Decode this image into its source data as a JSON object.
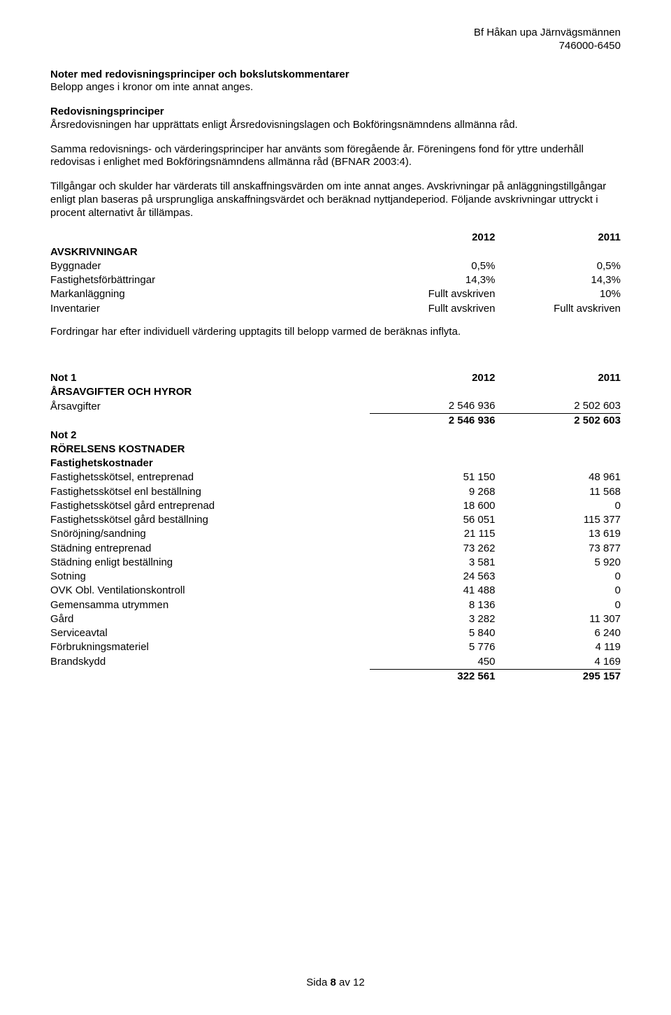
{
  "header": {
    "company": "Bf Håkan upa Järnvägsmännen",
    "orgnr": "746000-6450"
  },
  "intro": {
    "title": "Noter med redovisningsprinciper och bokslutskommentarer",
    "subtitle": "Belopp anges i kronor om inte annat anges.",
    "principles_heading": "Redovisningsprinciper",
    "p1": "Årsredovisningen har upprättats enligt Årsredovisningslagen och Bokföringsnämndens allmänna råd.",
    "p2": "Samma redovisnings- och värderingsprinciper har använts som föregående år. Föreningens fond för yttre underhåll redovisas i enlighet med Bokföringsnämndens allmänna råd (BFNAR 2003:4).",
    "p3": "Tillgångar och skulder har värderats till anskaffningsvärden om inte annat anges. Avskrivningar på anläggningstillgångar enligt plan baseras på ursprungliga anskaffningsvärdet och beräknad nyttjandeperiod. Följande avskrivningar uttryckt i procent alternativt år tillämpas."
  },
  "avskrivningar": {
    "year_a": "2012",
    "year_b": "2011",
    "heading": "AVSKRIVNINGAR",
    "rows": [
      {
        "label": "Byggnader",
        "a": "0,5%",
        "b": "0,5%"
      },
      {
        "label": "Fastighetsförbättringar",
        "a": "14,3%",
        "b": "14,3%"
      },
      {
        "label": "Markanläggning",
        "a": "Fullt avskriven",
        "b": "10%"
      },
      {
        "label": "Inventarier",
        "a": "Fullt avskriven",
        "b": "Fullt avskriven"
      }
    ],
    "footnote": "Fordringar har efter individuell värdering upptagits till belopp varmed de beräknas inflyta."
  },
  "notes": {
    "year_a": "2012",
    "year_b": "2011",
    "not1_label": "Not 1",
    "not1_heading": "ÅRSAVGIFTER OCH HYROR",
    "not1_rows": [
      {
        "label": "Årsavgifter",
        "a": "2 546 936",
        "b": "2 502 603"
      }
    ],
    "not1_total": {
      "a": "2 546 936",
      "b": "2 502 603"
    },
    "not2_label": "Not 2",
    "not2_heading": "RÖRELSENS KOSTNADER",
    "not2_sub": "Fastighetskostnader",
    "not2_rows": [
      {
        "label": "Fastighetsskötsel, entreprenad",
        "a": "51 150",
        "b": "48 961"
      },
      {
        "label": "Fastighetsskötsel enl beställning",
        "a": "9 268",
        "b": "11 568"
      },
      {
        "label": "Fastighetsskötsel gård entreprenad",
        "a": "18 600",
        "b": "0"
      },
      {
        "label": "Fastighetsskötsel gård beställning",
        "a": "56 051",
        "b": "115 377"
      },
      {
        "label": "Snöröjning/sandning",
        "a": "21 115",
        "b": "13 619"
      },
      {
        "label": "Städning entreprenad",
        "a": "73 262",
        "b": "73 877"
      },
      {
        "label": "Städning enligt beställning",
        "a": "3 581",
        "b": "5 920"
      },
      {
        "label": "Sotning",
        "a": "24 563",
        "b": "0"
      },
      {
        "label": "OVK Obl. Ventilationskontroll",
        "a": "41 488",
        "b": "0"
      },
      {
        "label": "Gemensamma utrymmen",
        "a": "8 136",
        "b": "0"
      },
      {
        "label": "Gård",
        "a": "3 282",
        "b": "11 307"
      },
      {
        "label": "Serviceavtal",
        "a": "5 840",
        "b": "6 240"
      },
      {
        "label": "Förbrukningsmateriel",
        "a": "5 776",
        "b": "4 119"
      },
      {
        "label": "Brandskydd",
        "a": "450",
        "b": "4 169"
      }
    ],
    "not2_total": {
      "a": "322 561",
      "b": "295 157"
    }
  },
  "footer": {
    "prefix": "Sida ",
    "page": "8",
    "middle": " av ",
    "total": "12"
  }
}
